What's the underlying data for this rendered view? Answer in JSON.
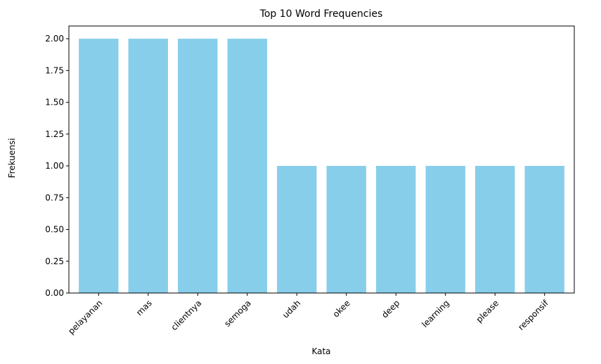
{
  "chart_data": {
    "type": "bar",
    "title": "Top 10 Word Frequencies",
    "xlabel": "Kata",
    "ylabel": "Frekuensi",
    "categories": [
      "pelayanan",
      "mas",
      "clientnya",
      "semoga",
      "udah",
      "okee",
      "deep",
      "learning",
      "please",
      "responsif"
    ],
    "values": [
      2,
      2,
      2,
      2,
      1,
      1,
      1,
      1,
      1,
      1
    ],
    "ylim": [
      0,
      2.1
    ],
    "yticks": [
      "0.00",
      "0.25",
      "0.50",
      "0.75",
      "1.00",
      "1.25",
      "1.50",
      "1.75",
      "2.00"
    ],
    "grid": false,
    "bar_color": "#87ceeb"
  }
}
